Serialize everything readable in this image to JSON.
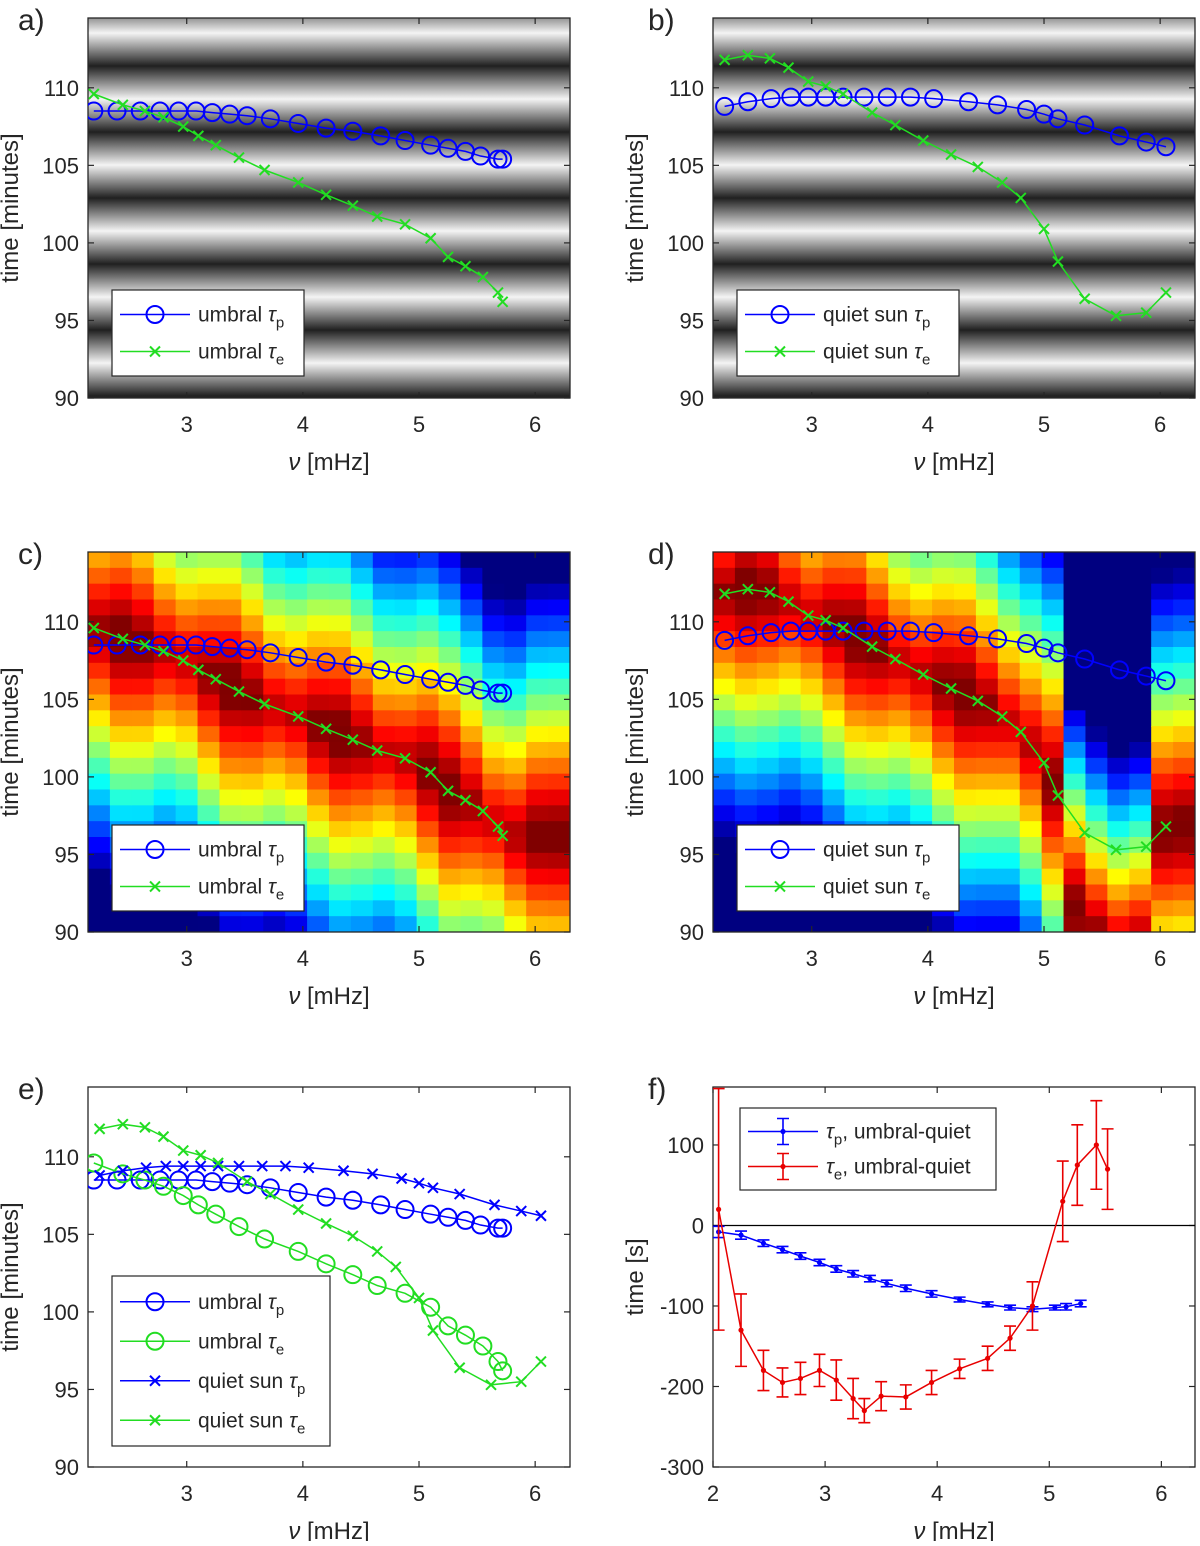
{
  "figure": {
    "panel_labels": [
      "a)",
      "b)",
      "c)",
      "d)",
      "e)",
      "f)"
    ]
  },
  "colors": {
    "blue": "#0000ff",
    "green": "#22dd22",
    "red": "#e80000",
    "axis": "#262626"
  },
  "chart_data": [
    {
      "id": "a",
      "type": "line",
      "label": "a)",
      "background": "grayscale map",
      "xlabel": "ν [mHz]",
      "ylabel": "time [minutes]",
      "xlim": [
        2.15,
        6.3
      ],
      "ylim": [
        90,
        114.5
      ],
      "xticks": [
        3,
        4,
        5,
        6
      ],
      "yticks": [
        90,
        95,
        100,
        105,
        110
      ],
      "legend": "bottom-left",
      "series": [
        {
          "name": "umbral τp",
          "legend_main": "umbral ",
          "legend_sub": "p",
          "color": "#0000ff",
          "marker": "circle",
          "x": [
            2.2,
            2.4,
            2.6,
            2.77,
            2.93,
            3.08,
            3.22,
            3.37,
            3.52,
            3.72,
            3.96,
            4.2,
            4.43,
            4.67,
            4.88,
            5.1,
            5.25,
            5.4,
            5.53,
            5.68,
            5.72
          ],
          "y": [
            108.5,
            108.5,
            108.5,
            108.5,
            108.5,
            108.5,
            108.4,
            108.3,
            108.2,
            108,
            107.7,
            107.4,
            107.2,
            106.9,
            106.6,
            106.3,
            106.1,
            105.9,
            105.6,
            105.4,
            105.4
          ]
        },
        {
          "name": "umbral τe",
          "legend_main": "umbral ",
          "legend_sub": "e",
          "color": "#22dd22",
          "marker": "x",
          "x": [
            2.2,
            2.45,
            2.64,
            2.8,
            2.97,
            3.1,
            3.25,
            3.45,
            3.67,
            3.96,
            4.2,
            4.43,
            4.64,
            4.88,
            5.1,
            5.25,
            5.4,
            5.55,
            5.68,
            5.72
          ],
          "y": [
            109.6,
            108.9,
            108.5,
            108.1,
            107.5,
            106.9,
            106.3,
            105.5,
            104.7,
            103.9,
            103.1,
            102.4,
            101.7,
            101.2,
            100.3,
            99.1,
            98.5,
            97.8,
            96.8,
            96.2
          ]
        }
      ]
    },
    {
      "id": "b",
      "type": "line",
      "label": "b)",
      "background": "grayscale map",
      "xlabel": "ν [mHz]",
      "ylabel": "time [minutes]",
      "xlim": [
        2.15,
        6.3
      ],
      "ylim": [
        90,
        114.5
      ],
      "xticks": [
        3,
        4,
        5,
        6
      ],
      "yticks": [
        90,
        95,
        100,
        105,
        110
      ],
      "legend": "bottom-left",
      "series": [
        {
          "name": "quiet sun τp",
          "legend_main": "quiet sun ",
          "legend_sub": "p",
          "color": "#0000ff",
          "marker": "circle",
          "x": [
            2.25,
            2.45,
            2.65,
            2.82,
            2.97,
            3.12,
            3.27,
            3.45,
            3.65,
            3.85,
            4.05,
            4.35,
            4.6,
            4.85,
            5.0,
            5.12,
            5.35,
            5.65,
            5.88,
            6.05
          ],
          "y": [
            108.8,
            109.1,
            109.3,
            109.4,
            109.4,
            109.4,
            109.4,
            109.4,
            109.4,
            109.4,
            109.3,
            109.1,
            108.9,
            108.6,
            108.3,
            108.0,
            107.6,
            106.9,
            106.5,
            106.2
          ]
        },
        {
          "name": "quiet sun τe",
          "legend_main": "quiet sun ",
          "legend_sub": "e",
          "color": "#22dd22",
          "marker": "x",
          "x": [
            2.25,
            2.45,
            2.64,
            2.8,
            2.97,
            3.12,
            3.27,
            3.52,
            3.72,
            3.96,
            4.2,
            4.43,
            4.64,
            4.8,
            5.0,
            5.12,
            5.35,
            5.62,
            5.88,
            6.05
          ],
          "y": [
            111.8,
            112.1,
            111.9,
            111.3,
            110.4,
            110.1,
            109.6,
            108.4,
            107.6,
            106.6,
            105.7,
            104.9,
            103.9,
            102.9,
            100.9,
            98.8,
            96.4,
            95.3,
            95.5,
            96.8
          ]
        }
      ]
    },
    {
      "id": "c",
      "type": "line",
      "label": "c)",
      "background": "jet colour map",
      "xlabel": "ν [mHz]",
      "ylabel": "time [minutes]",
      "xlim": [
        2.15,
        6.3
      ],
      "ylim": [
        90,
        114.5
      ],
      "xticks": [
        3,
        4,
        5,
        6
      ],
      "yticks": [
        90,
        95,
        100,
        105,
        110
      ],
      "legend": "bottom-left",
      "series_same_as": "a"
    },
    {
      "id": "d",
      "type": "line",
      "label": "d)",
      "background": "jet colour map",
      "xlabel": "ν [mHz]",
      "ylabel": "time [minutes]",
      "xlim": [
        2.15,
        6.3
      ],
      "ylim": [
        90,
        114.5
      ],
      "xticks": [
        3,
        4,
        5,
        6
      ],
      "yticks": [
        90,
        95,
        100,
        105,
        110
      ],
      "legend": "bottom-left",
      "series_same_as": "b"
    },
    {
      "id": "e",
      "type": "line",
      "label": "e)",
      "background": "white",
      "xlabel": "ν [mHz]",
      "ylabel": "time [minutes]",
      "xlim": [
        2.15,
        6.3
      ],
      "ylim": [
        90,
        114.5
      ],
      "xticks": [
        3,
        4,
        5,
        6
      ],
      "yticks": [
        90,
        95,
        100,
        105,
        110
      ],
      "legend": "bottom-left",
      "series_from": [
        {
          "source": "a",
          "index": 0,
          "name": "umbral τp",
          "legend_main": "umbral ",
          "legend_sub": "p",
          "color": "#0000ff",
          "marker": "circle"
        },
        {
          "source": "a",
          "index": 1,
          "name": "umbral τe",
          "legend_main": "umbral ",
          "legend_sub": "e",
          "color": "#22dd22",
          "marker": "circle"
        },
        {
          "source": "b",
          "index": 0,
          "name": "quiet sun τp",
          "legend_main": "quiet sun ",
          "legend_sub": "p",
          "color": "#0000ff",
          "marker": "x"
        },
        {
          "source": "b",
          "index": 1,
          "name": "quiet sun τe",
          "legend_main": "quiet sun ",
          "legend_sub": "e",
          "color": "#22dd22",
          "marker": "x"
        }
      ]
    },
    {
      "id": "f",
      "type": "errorbar",
      "label": "f)",
      "background": "white",
      "xlabel": "ν [mHz]",
      "ylabel": "time [s]",
      "xlim": [
        2,
        6.3
      ],
      "ylim": [
        -300,
        172
      ],
      "xticks": [
        2,
        3,
        4,
        5,
        6
      ],
      "yticks": [
        -300,
        -200,
        -100,
        0,
        100
      ],
      "zero_line": true,
      "legend": "top-left",
      "series": [
        {
          "name": "τp, umbral-quiet",
          "legend_main": "",
          "legend_sub": "p",
          "legend_rest": ", umbral-quiet",
          "color": "#0000ff",
          "x": [
            2.05,
            2.25,
            2.45,
            2.62,
            2.78,
            2.95,
            3.1,
            3.25,
            3.4,
            3.55,
            3.72,
            3.95,
            4.2,
            4.45,
            4.65,
            4.85,
            5.05,
            5.15,
            5.28
          ],
          "y": [
            -8,
            -12,
            -22,
            -30,
            -38,
            -46,
            -54,
            -60,
            -66,
            -72,
            -78,
            -85,
            -92,
            -98,
            -102,
            -104,
            -102,
            -101,
            -97
          ],
          "err": [
            7,
            5,
            4,
            4,
            4,
            4,
            4,
            4,
            4,
            4,
            4,
            4,
            3,
            3,
            3,
            3,
            3,
            4,
            4
          ]
        },
        {
          "name": "τe, umbral-quiet",
          "legend_main": "",
          "legend_sub": "e",
          "legend_rest": ", umbral-quiet",
          "color": "#e80000",
          "x": [
            2.05,
            2.25,
            2.45,
            2.62,
            2.78,
            2.95,
            3.1,
            3.25,
            3.35,
            3.5,
            3.72,
            3.95,
            4.2,
            4.45,
            4.65,
            4.85,
            5.12,
            5.25,
            5.42,
            5.52
          ],
          "y": [
            20,
            -130,
            -180,
            -195,
            -190,
            -180,
            -192,
            -215,
            -230,
            -212,
            -213,
            -195,
            -178,
            -165,
            -140,
            -100,
            30,
            75,
            100,
            70
          ],
          "err": [
            150,
            45,
            25,
            18,
            20,
            20,
            25,
            25,
            15,
            18,
            15,
            15,
            12,
            15,
            15,
            30,
            50,
            50,
            55,
            50
          ]
        }
      ]
    }
  ]
}
